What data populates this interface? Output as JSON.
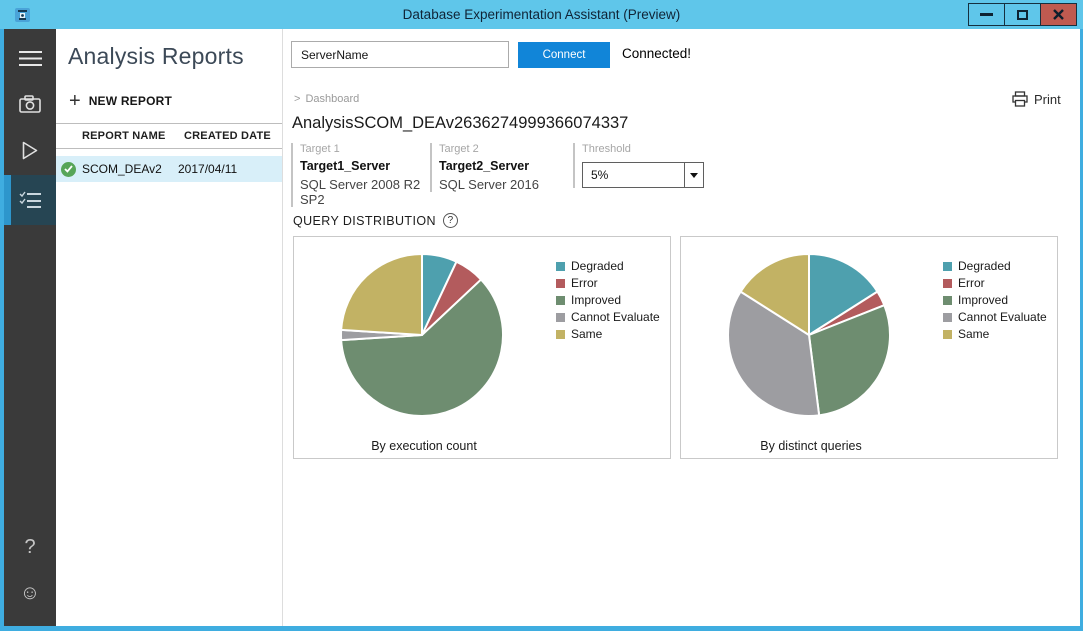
{
  "titlebar": {
    "title": "Database Experimentation Assistant (Preview)"
  },
  "sidebar": {
    "items": [
      "menu",
      "camera",
      "play",
      "analysis-reports"
    ],
    "help_glyph": "?",
    "feedback_glyph": "☺"
  },
  "reports_panel": {
    "title": "Analysis Reports",
    "plus_glyph": "+",
    "new_report_label": "NEW REPORT",
    "columns": [
      "REPORT NAME",
      "CREATED DATE"
    ],
    "rows": [
      {
        "name": "SCOM_DEAv2",
        "date": "2017/04/11",
        "status": "completed"
      }
    ]
  },
  "toolbar": {
    "server_value": "ServerName",
    "connect_label": "Connect",
    "status_text": "Connected!"
  },
  "dashboard": {
    "breadcrumb_sep": ">",
    "breadcrumb": "Dashboard",
    "print_label": "Print",
    "title": "AnalysisSCOM_DEAv2636274999366074337",
    "targets": [
      {
        "label": "Target 1",
        "server": "Target1_Server",
        "version": "SQL Server 2008 R2 SP2"
      },
      {
        "label": "Target 2",
        "server": "Target2_Server",
        "version": "SQL Server 2016"
      }
    ],
    "threshold": {
      "label": "Threshold",
      "value": "5%"
    },
    "section_title": "QUERY DISTRIBUTION",
    "help_glyph": "?"
  },
  "chart_data": [
    {
      "type": "pie",
      "title": "By execution count",
      "labels": [
        "Degraded",
        "Error",
        "Improved",
        "Cannot Evaluate",
        "Same"
      ],
      "values": [
        7,
        6,
        61,
        2,
        24
      ],
      "colors": [
        "#4EA0AE",
        "#B35B5D",
        "#6E8D70",
        "#9D9DA1",
        "#C2B264"
      ],
      "legend_position": "right",
      "start_angle_deg": 0,
      "direction": "clockwise"
    },
    {
      "type": "pie",
      "title": "By distinct queries",
      "labels": [
        "Degraded",
        "Error",
        "Improved",
        "Cannot Evaluate",
        "Same"
      ],
      "values": [
        16,
        3,
        29,
        36,
        16
      ],
      "colors": [
        "#4EA0AE",
        "#B35B5D",
        "#6E8D70",
        "#9D9DA1",
        "#C2B264"
      ],
      "legend_position": "right",
      "start_angle_deg": 0,
      "direction": "clockwise"
    }
  ],
  "theme": {
    "titlebar_bg": "#5FC6EA",
    "window_border": "#3FADE0",
    "close_button_bg": "#BF5A50",
    "sidebar_bg": "#3A3A3A",
    "sidebar_selected_bg": "#264553",
    "sidebar_selected_indicator": "#2D96CC",
    "accent_button": "#1185D8",
    "row_highlight": "#D8EFF9",
    "success_green": "#57A558"
  }
}
